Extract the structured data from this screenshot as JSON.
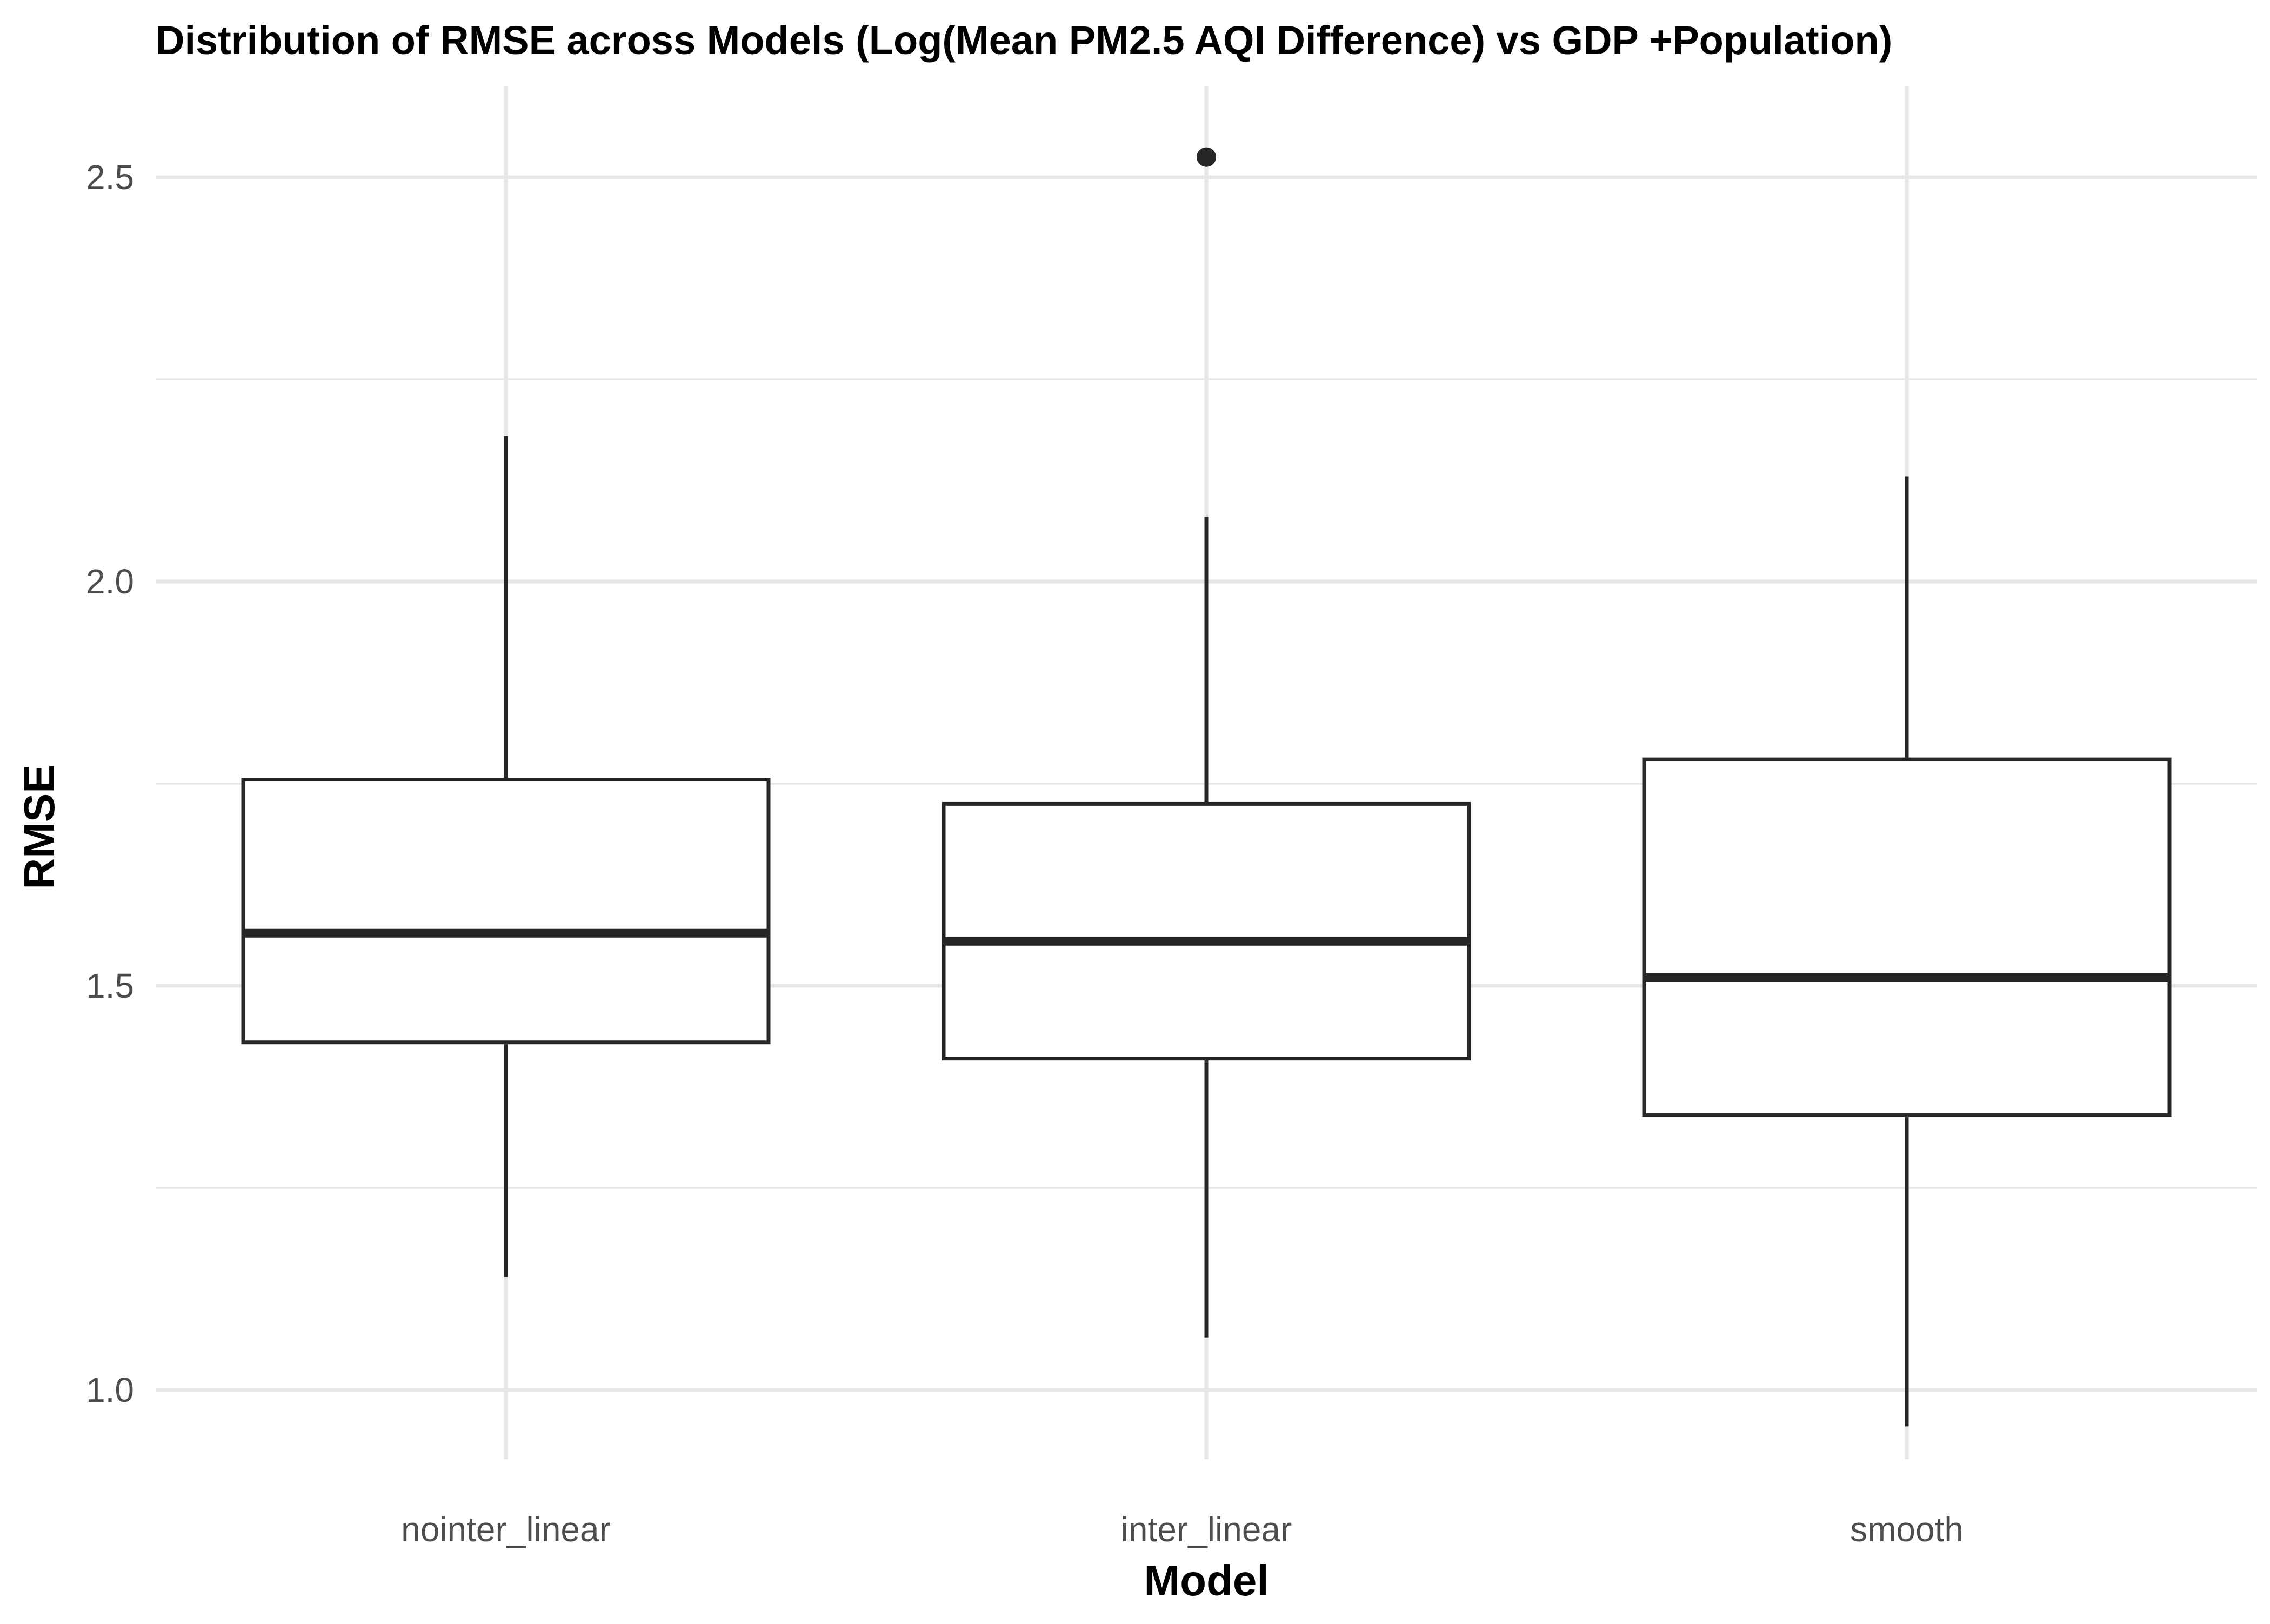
{
  "chart_data": {
    "type": "boxplot",
    "title": "Distribution of RMSE across Models (Log(Mean PM2.5 AQI Difference) vs GDP +Population)",
    "xlabel": "Model",
    "ylabel": "RMSE",
    "ylim": [
      0.9,
      2.6
    ],
    "yticks": [
      1.0,
      1.5,
      2.0,
      2.5
    ],
    "ytick_labels": [
      "1.0",
      "1.5",
      "2.0",
      "2.5"
    ],
    "grid": true,
    "legend": "none",
    "categories": [
      "nointer_linear",
      "inter_linear",
      "smooth"
    ],
    "boxes": [
      {
        "category": "nointer_linear",
        "whisker_low": 1.14,
        "q1": 1.43,
        "median": 1.565,
        "q3": 1.755,
        "whisker_high": 2.18,
        "outliers": []
      },
      {
        "category": "inter_linear",
        "whisker_low": 1.065,
        "q1": 1.41,
        "median": 1.555,
        "q3": 1.725,
        "whisker_high": 2.08,
        "outliers": [
          2.525
        ]
      },
      {
        "category": "smooth",
        "whisker_low": 0.955,
        "q1": 1.34,
        "median": 1.51,
        "q3": 1.78,
        "whisker_high": 2.13,
        "outliers": []
      }
    ],
    "colors": {
      "box_line": "#262626",
      "box_fill": "#ffffff",
      "grid": "#e6e6e6",
      "tick_text": "#4d4d4d",
      "title_text": "#000000"
    }
  }
}
